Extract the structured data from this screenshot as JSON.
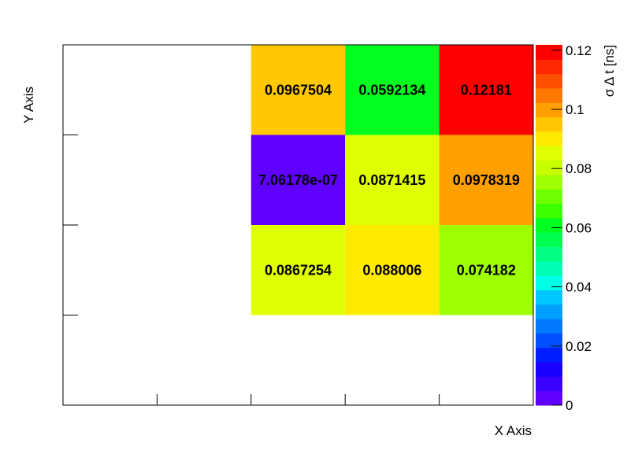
{
  "chart_data": {
    "type": "heatmap",
    "xlabel": "X Axis",
    "ylabel": "Y Axis",
    "zlabel": "σ Δ t [ns]",
    "x_bins": 5,
    "y_bins": 4,
    "cells": [
      {
        "xbin": 2,
        "ybin": 1,
        "value": 0.0867254,
        "label": "0.0867254"
      },
      {
        "xbin": 3,
        "ybin": 1,
        "value": 0.088006,
        "label": "0.088006"
      },
      {
        "xbin": 4,
        "ybin": 1,
        "value": 0.074182,
        "label": "0.074182"
      },
      {
        "xbin": 2,
        "ybin": 2,
        "value": 7.06178e-07,
        "label": "7.06178e-07"
      },
      {
        "xbin": 3,
        "ybin": 2,
        "value": 0.0871415,
        "label": "0.0871415"
      },
      {
        "xbin": 4,
        "ybin": 2,
        "value": 0.0978319,
        "label": "0.0978319"
      },
      {
        "xbin": 2,
        "ybin": 3,
        "value": 0.0967504,
        "label": "0.0967504"
      },
      {
        "xbin": 3,
        "ybin": 3,
        "value": 0.0592134,
        "label": "0.0592134"
      },
      {
        "xbin": 4,
        "ybin": 3,
        "value": 0.12181,
        "label": "0.12181"
      }
    ],
    "zlim": [
      0,
      0.12181
    ],
    "colorbar_ticks": [
      {
        "value": 0,
        "label": "0"
      },
      {
        "value": 0.02,
        "label": "0.02"
      },
      {
        "value": 0.04,
        "label": "0.04"
      },
      {
        "value": 0.06,
        "label": "0.06"
      },
      {
        "value": 0.08,
        "label": "0.08"
      },
      {
        "value": 0.1,
        "label": "0.1"
      },
      {
        "value": 0.12,
        "label": "0.12"
      }
    ],
    "palette": [
      "#6000ff",
      "#3c00ff",
      "#1a00ff",
      "#001eff",
      "#0050ff",
      "#0078ff",
      "#00a0ff",
      "#00c8ff",
      "#00ffe6",
      "#00ffb4",
      "#00ff82",
      "#00ff50",
      "#00ff1e",
      "#3cff00",
      "#6eff00",
      "#a0ff00",
      "#c8ff00",
      "#e0ff00",
      "#ffeb00",
      "#ffc800",
      "#ffa000",
      "#ff7800",
      "#ff5000",
      "#ff2800",
      "#ff0000"
    ],
    "grid": false,
    "legend": "none"
  }
}
